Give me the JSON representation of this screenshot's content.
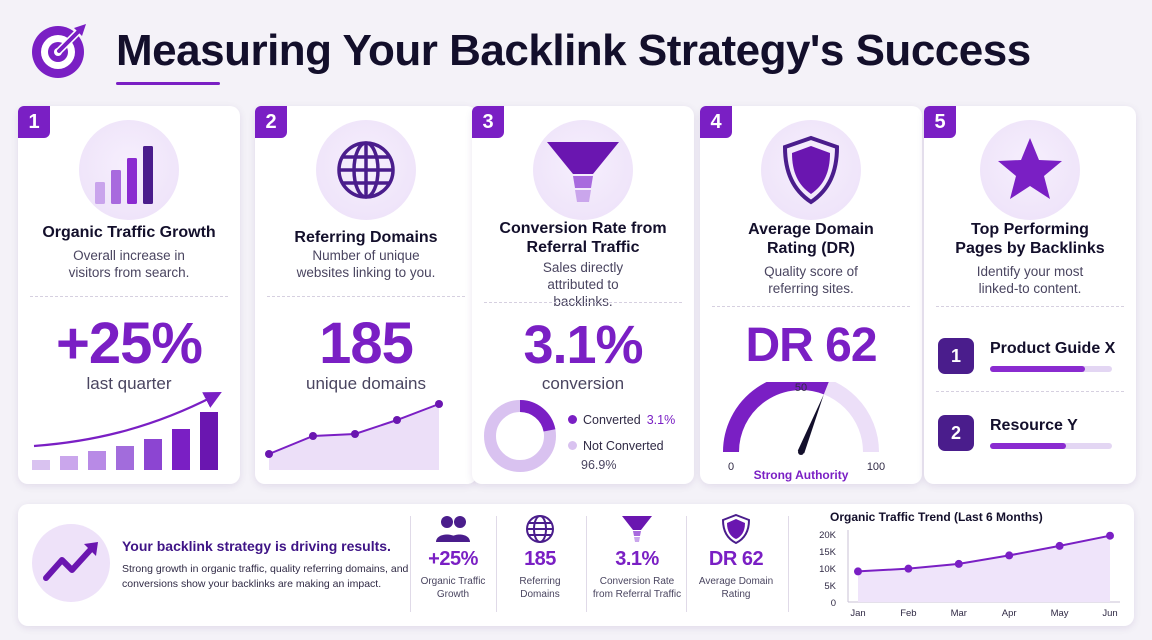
{
  "header": {
    "title": "Measuring Your Backlink Strategy's Success",
    "logo_icon": "target-arrow-icon"
  },
  "colors": {
    "accent": "#7a1fc4",
    "accent_dark": "#4a1d8c",
    "accent_light": "#d9c2f0",
    "background": "#f4f2f8"
  },
  "cards": [
    {
      "number": "1",
      "icon": "bar-chart-icon",
      "title": "Organic Traffic Growth",
      "description": "Overall increase in visitors from search.",
      "value": "+25%",
      "value_label": "last quarter"
    },
    {
      "number": "2",
      "icon": "globe-icon",
      "title": "Referring Domains",
      "description": "Number of unique websites linking to you.",
      "value": "185",
      "value_label": "unique domains"
    },
    {
      "number": "3",
      "icon": "funnel-icon",
      "title": "Conversion Rate from Referral Traffic",
      "description": "Sales directly attributed to backlinks.",
      "value": "3.1%",
      "value_label": "conversion",
      "donut": {
        "converted_label": "Converted",
        "converted_pct": "3.1%",
        "converted_value": 3.1,
        "not_converted_label": "Not Converted",
        "not_converted_pct": "96.9%",
        "not_converted_value": 96.9
      }
    },
    {
      "number": "4",
      "icon": "shield-icon",
      "title": "Average Domain Rating (DR)",
      "description": "Quality score of referring sites.",
      "value": "DR 62",
      "gauge": {
        "min": "0",
        "mid": "50",
        "max": "100",
        "value": 62,
        "label": "Strong Authority"
      }
    },
    {
      "number": "5",
      "icon": "star-icon",
      "title": "Top Performing Pages by Backlinks",
      "description": "Identify your most linked-to content.",
      "pages": [
        {
          "rank": "1",
          "name": "Product Guide X",
          "fill": 0.78
        },
        {
          "rank": "2",
          "name": "Resource Y",
          "fill": 0.62
        }
      ]
    }
  ],
  "summary": {
    "icon": "trend-up-arrow-icon",
    "title": "Your backlink strategy is driving results.",
    "description": "Strong growth in organic traffic, quality referring domains, and conversions show your backlinks are making an impact.",
    "stats": [
      {
        "icon": "users-icon",
        "value": "+25%",
        "label_line1": "Organic Traffic",
        "label_line2": "Growth"
      },
      {
        "icon": "globe-icon",
        "value": "185",
        "label_line1": "Referring",
        "label_line2": "Domains"
      },
      {
        "icon": "funnel-icon",
        "value": "3.1%",
        "label_line1": "Conversion Rate",
        "label_line2": "from Referral Traffic"
      },
      {
        "icon": "shield-icon",
        "value": "DR 62",
        "label_line1": "Average Domain",
        "label_line2": "Rating"
      }
    ]
  },
  "chart_data": {
    "type": "line",
    "title": "Organic Traffic Trend (Last 6 Months)",
    "categories": [
      "Jan",
      "Feb",
      "Mar",
      "Apr",
      "May",
      "Jun"
    ],
    "values": [
      9000,
      9800,
      11200,
      13700,
      16500,
      19500
    ],
    "yticks": [
      "0",
      "5K",
      "10K",
      "15K",
      "20K"
    ],
    "ylim": [
      0,
      20000
    ],
    "grid": false
  }
}
